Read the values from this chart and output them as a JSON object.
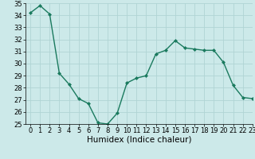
{
  "x": [
    0,
    1,
    2,
    3,
    4,
    5,
    6,
    7,
    8,
    9,
    10,
    11,
    12,
    13,
    14,
    15,
    16,
    17,
    18,
    19,
    20,
    21,
    22,
    23
  ],
  "y": [
    34.2,
    34.8,
    34.1,
    29.2,
    28.3,
    27.1,
    26.7,
    25.1,
    25.0,
    25.9,
    28.4,
    28.8,
    29.0,
    30.8,
    31.1,
    31.9,
    31.3,
    31.2,
    31.1,
    31.1,
    30.1,
    28.2,
    27.2,
    27.1
  ],
  "line_color": "#1a7a5e",
  "marker": "D",
  "markersize": 2.0,
  "linewidth": 1.0,
  "xlabel": "Humidex (Indice chaleur)",
  "ylim": [
    25,
    35
  ],
  "xlim": [
    -0.5,
    23
  ],
  "yticks": [
    25,
    26,
    27,
    28,
    29,
    30,
    31,
    32,
    33,
    34,
    35
  ],
  "xticks": [
    0,
    1,
    2,
    3,
    4,
    5,
    6,
    7,
    8,
    9,
    10,
    11,
    12,
    13,
    14,
    15,
    16,
    17,
    18,
    19,
    20,
    21,
    22,
    23
  ],
  "xtick_labels": [
    "0",
    "1",
    "2",
    "3",
    "4",
    "5",
    "6",
    "7",
    "8",
    "9",
    "10",
    "11",
    "12",
    "13",
    "14",
    "15",
    "16",
    "17",
    "18",
    "19",
    "20",
    "21",
    "22",
    "23"
  ],
  "bg_color": "#cce9e9",
  "grid_color": "#b0d4d4",
  "tick_fontsize": 6.0,
  "xlabel_fontsize": 7.5
}
